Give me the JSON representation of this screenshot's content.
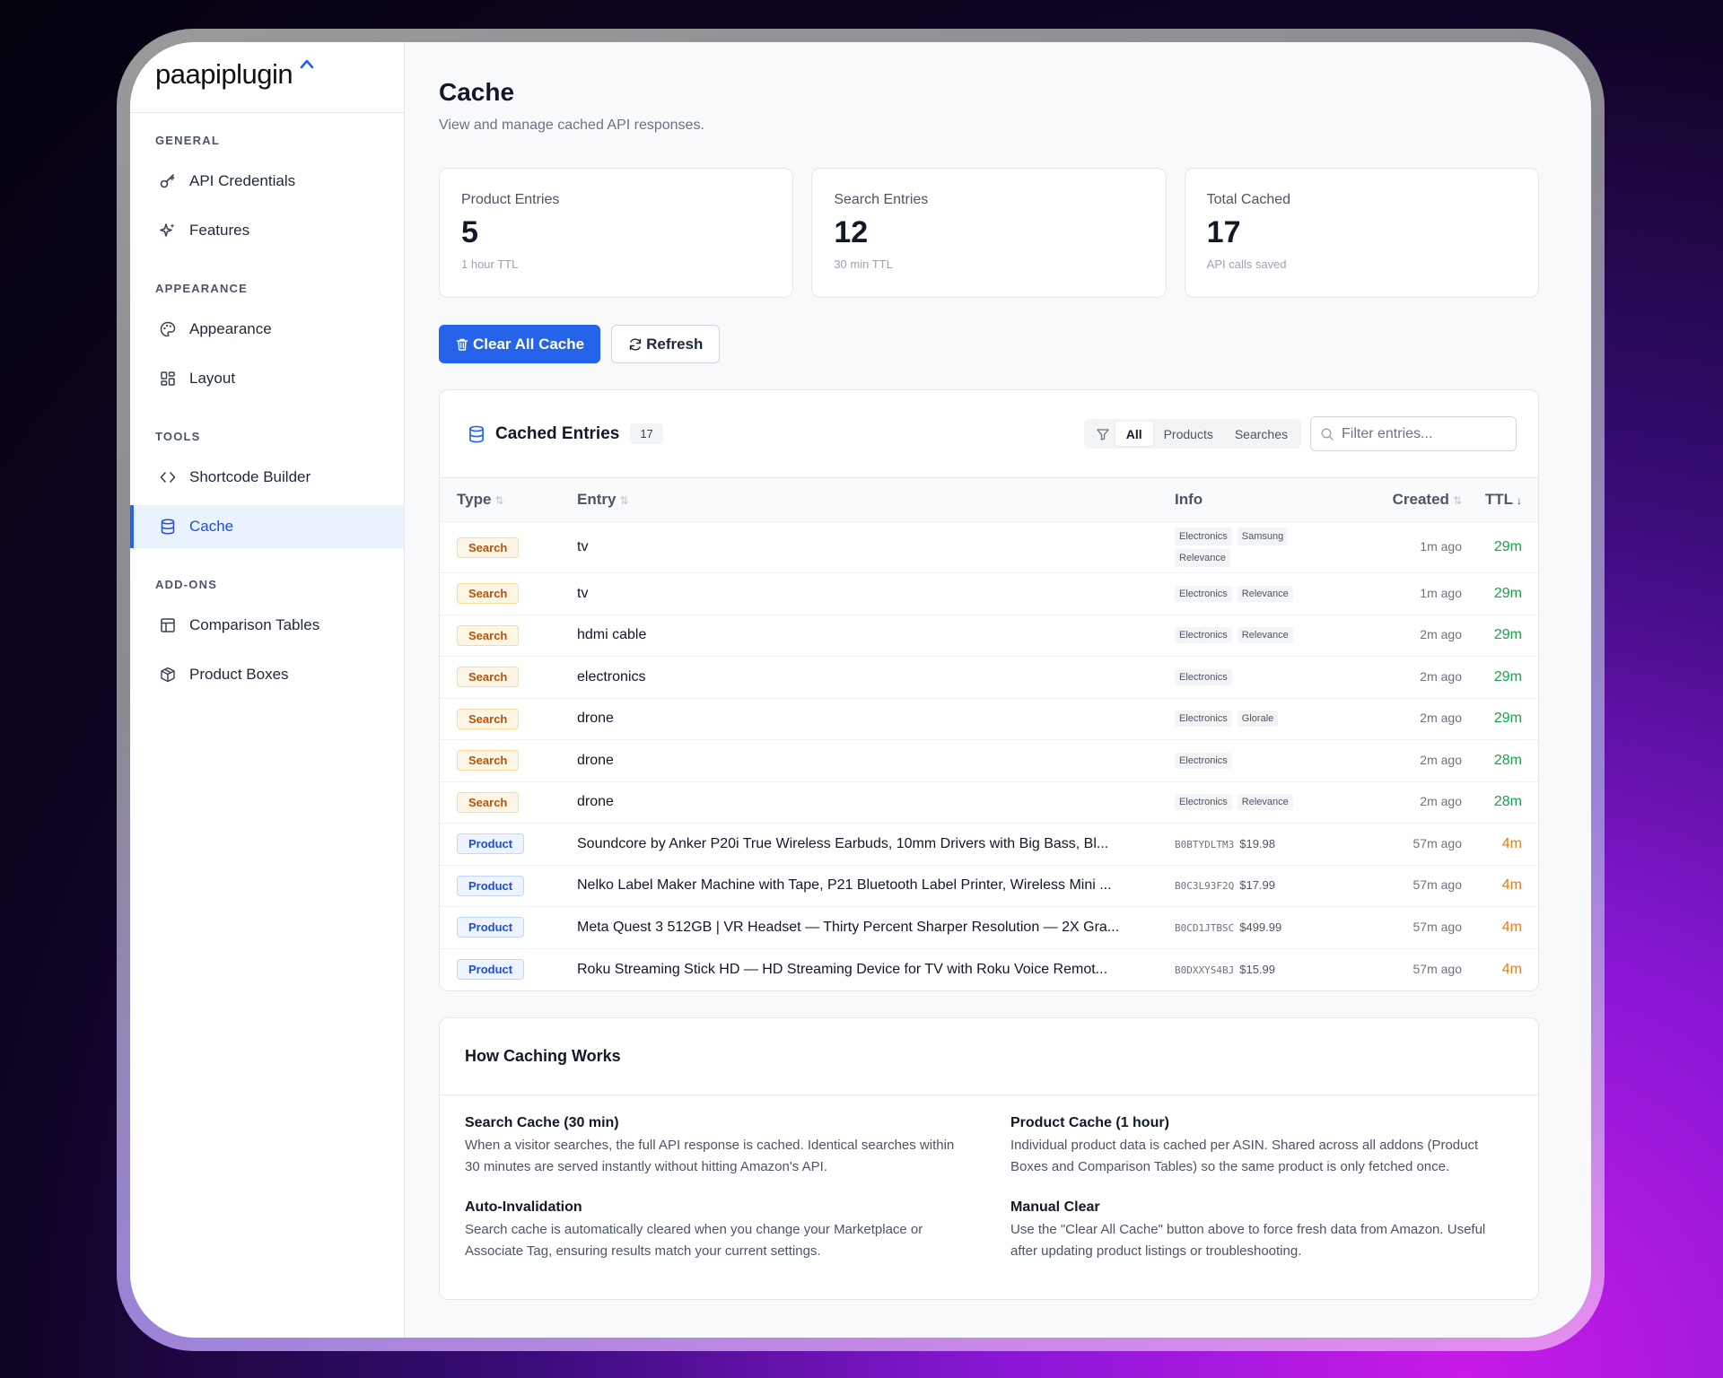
{
  "app": {
    "logo": "paapiplugin"
  },
  "sidebar": {
    "sections": [
      {
        "title": "GENERAL",
        "items": [
          {
            "label": "API Credentials",
            "icon": "key-icon"
          },
          {
            "label": "Features",
            "icon": "sparkles-icon"
          }
        ]
      },
      {
        "title": "APPEARANCE",
        "items": [
          {
            "label": "Appearance",
            "icon": "palette-icon"
          },
          {
            "label": "Layout",
            "icon": "layout-icon"
          }
        ]
      },
      {
        "title": "TOOLS",
        "items": [
          {
            "label": "Shortcode Builder",
            "icon": "code-icon"
          },
          {
            "label": "Cache",
            "icon": "database-icon",
            "active": true
          }
        ]
      },
      {
        "title": "ADD-ONS",
        "items": [
          {
            "label": "Comparison Tables",
            "icon": "table-icon"
          },
          {
            "label": "Product Boxes",
            "icon": "box-icon"
          }
        ]
      }
    ]
  },
  "page": {
    "title": "Cache",
    "subtitle": "View and manage cached API responses."
  },
  "stats": [
    {
      "label": "Product Entries",
      "value": "5",
      "note": "1 hour TTL"
    },
    {
      "label": "Search Entries",
      "value": "12",
      "note": "30 min TTL"
    },
    {
      "label": "Total Cached",
      "value": "17",
      "note": "API calls saved"
    }
  ],
  "actions": {
    "clear_label": "Clear All Cache",
    "refresh_label": "Refresh"
  },
  "entries_card": {
    "title": "Cached Entries",
    "count": "17",
    "filters": [
      "All",
      "Products",
      "Searches"
    ],
    "active_filter": "All",
    "search_placeholder": "Filter entries...",
    "columns": {
      "type": "Type",
      "entry": "Entry",
      "info": "Info",
      "created": "Created",
      "ttl": "TTL"
    },
    "rows": [
      {
        "type": "Search",
        "entry": "tv",
        "chips": [
          "Electronics",
          "Samsung",
          "Relevance"
        ],
        "created": "1m ago",
        "ttl": "29m",
        "ttl_color": "green"
      },
      {
        "type": "Search",
        "entry": "tv",
        "chips": [
          "Electronics",
          "Relevance"
        ],
        "created": "1m ago",
        "ttl": "29m",
        "ttl_color": "green"
      },
      {
        "type": "Search",
        "entry": "hdmi cable",
        "chips": [
          "Electronics",
          "Relevance"
        ],
        "created": "2m ago",
        "ttl": "29m",
        "ttl_color": "green"
      },
      {
        "type": "Search",
        "entry": "electronics",
        "chips": [
          "Electronics"
        ],
        "created": "2m ago",
        "ttl": "29m",
        "ttl_color": "green"
      },
      {
        "type": "Search",
        "entry": "drone",
        "chips": [
          "Electronics",
          "Glorale"
        ],
        "created": "2m ago",
        "ttl": "29m",
        "ttl_color": "green"
      },
      {
        "type": "Search",
        "entry": "drone",
        "chips": [
          "Electronics"
        ],
        "created": "2m ago",
        "ttl": "28m",
        "ttl_color": "green"
      },
      {
        "type": "Search",
        "entry": "drone",
        "chips": [
          "Electronics",
          "Relevance"
        ],
        "created": "2m ago",
        "ttl": "28m",
        "ttl_color": "green"
      },
      {
        "type": "Product",
        "entry": "Soundcore by Anker P20i True Wireless Earbuds, 10mm Drivers with Big Bass, Bl...",
        "asin": "B0BTYDLTM3",
        "price": "$19.98",
        "created": "57m ago",
        "ttl": "4m",
        "ttl_color": "orange"
      },
      {
        "type": "Product",
        "entry": "Nelko Label Maker Machine with Tape, P21 Bluetooth Label Printer, Wireless Mini ...",
        "asin": "B0C3L93F2Q",
        "price": "$17.99",
        "created": "57m ago",
        "ttl": "4m",
        "ttl_color": "orange"
      },
      {
        "type": "Product",
        "entry": "Meta Quest 3 512GB | VR Headset — Thirty Percent Sharper Resolution — 2X Gra...",
        "asin": "B0CD1JTBSC",
        "price": "$499.99",
        "created": "57m ago",
        "ttl": "4m",
        "ttl_color": "orange"
      },
      {
        "type": "Product",
        "entry": "Roku Streaming Stick HD — HD Streaming Device for TV with Roku Voice Remot...",
        "asin": "B0DXXYS4BJ",
        "price": "$15.99",
        "created": "57m ago",
        "ttl": "4m",
        "ttl_color": "orange"
      }
    ]
  },
  "how": {
    "title": "How Caching Works",
    "items": [
      {
        "title": "Search Cache (30 min)",
        "text": "When a visitor searches, the full API response is cached. Identical searches within 30 minutes are served instantly without hitting Amazon's API."
      },
      {
        "title": "Product Cache (1 hour)",
        "text": "Individual product data is cached per ASIN. Shared across all addons (Product Boxes and Comparison Tables) so the same product is only fetched once."
      },
      {
        "title": "Auto-Invalidation",
        "text": "Search cache is automatically cleared when you change your Marketplace or Associate Tag, ensuring results match your current settings."
      },
      {
        "title": "Manual Clear",
        "text": "Use the \"Clear All Cache\" button above to force fresh data from Amazon. Useful after updating product listings or troubleshooting."
      }
    ]
  },
  "colors": {
    "accent": "#2563eb",
    "ttl_green": "#16a34a",
    "ttl_orange": "#ea7b0c"
  }
}
